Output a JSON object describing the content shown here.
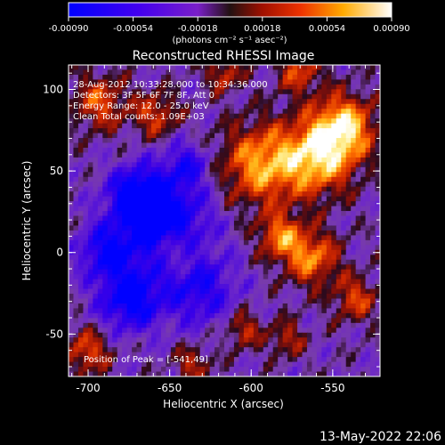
{
  "colorbar": {
    "ticks": [
      "-0.00090",
      "-0.00054",
      "-0.00018",
      "0.00018",
      "0.00054",
      "0.00090"
    ],
    "units": "(photons cm⁻² s⁻¹ asec⁻²)",
    "min": -0.0009,
    "max": 0.0009
  },
  "chart_data": {
    "type": "heatmap",
    "title": "Reconstructed RHESSI Image",
    "xlabel": "Heliocentric X (arcsec)",
    "ylabel": "Heliocentric Y (arcsec)",
    "xlim": [
      -712,
      -521
    ],
    "ylim": [
      -76,
      115
    ],
    "xticks": [
      "-700",
      "-650",
      "-600",
      "-550"
    ],
    "yticks": [
      "100",
      "50",
      "0",
      "-50"
    ],
    "annotations": [
      "28-Aug-2012 10:33:28.000 to 10:34:36.000",
      "Detectors: 3F 5F 6F 7F 8F, Att 0",
      "Energy Range: 12.0 - 25.0 keV",
      "Clean     Total counts: 1.09E+03"
    ],
    "peak_label": "Position of Peak = [-541,49]",
    "peak": [
      -541,
      49
    ],
    "grid": false,
    "colormap": "blue-purple-red-yellow-white"
  },
  "footer": {
    "timestamp": "13-May-2022 22:06"
  }
}
